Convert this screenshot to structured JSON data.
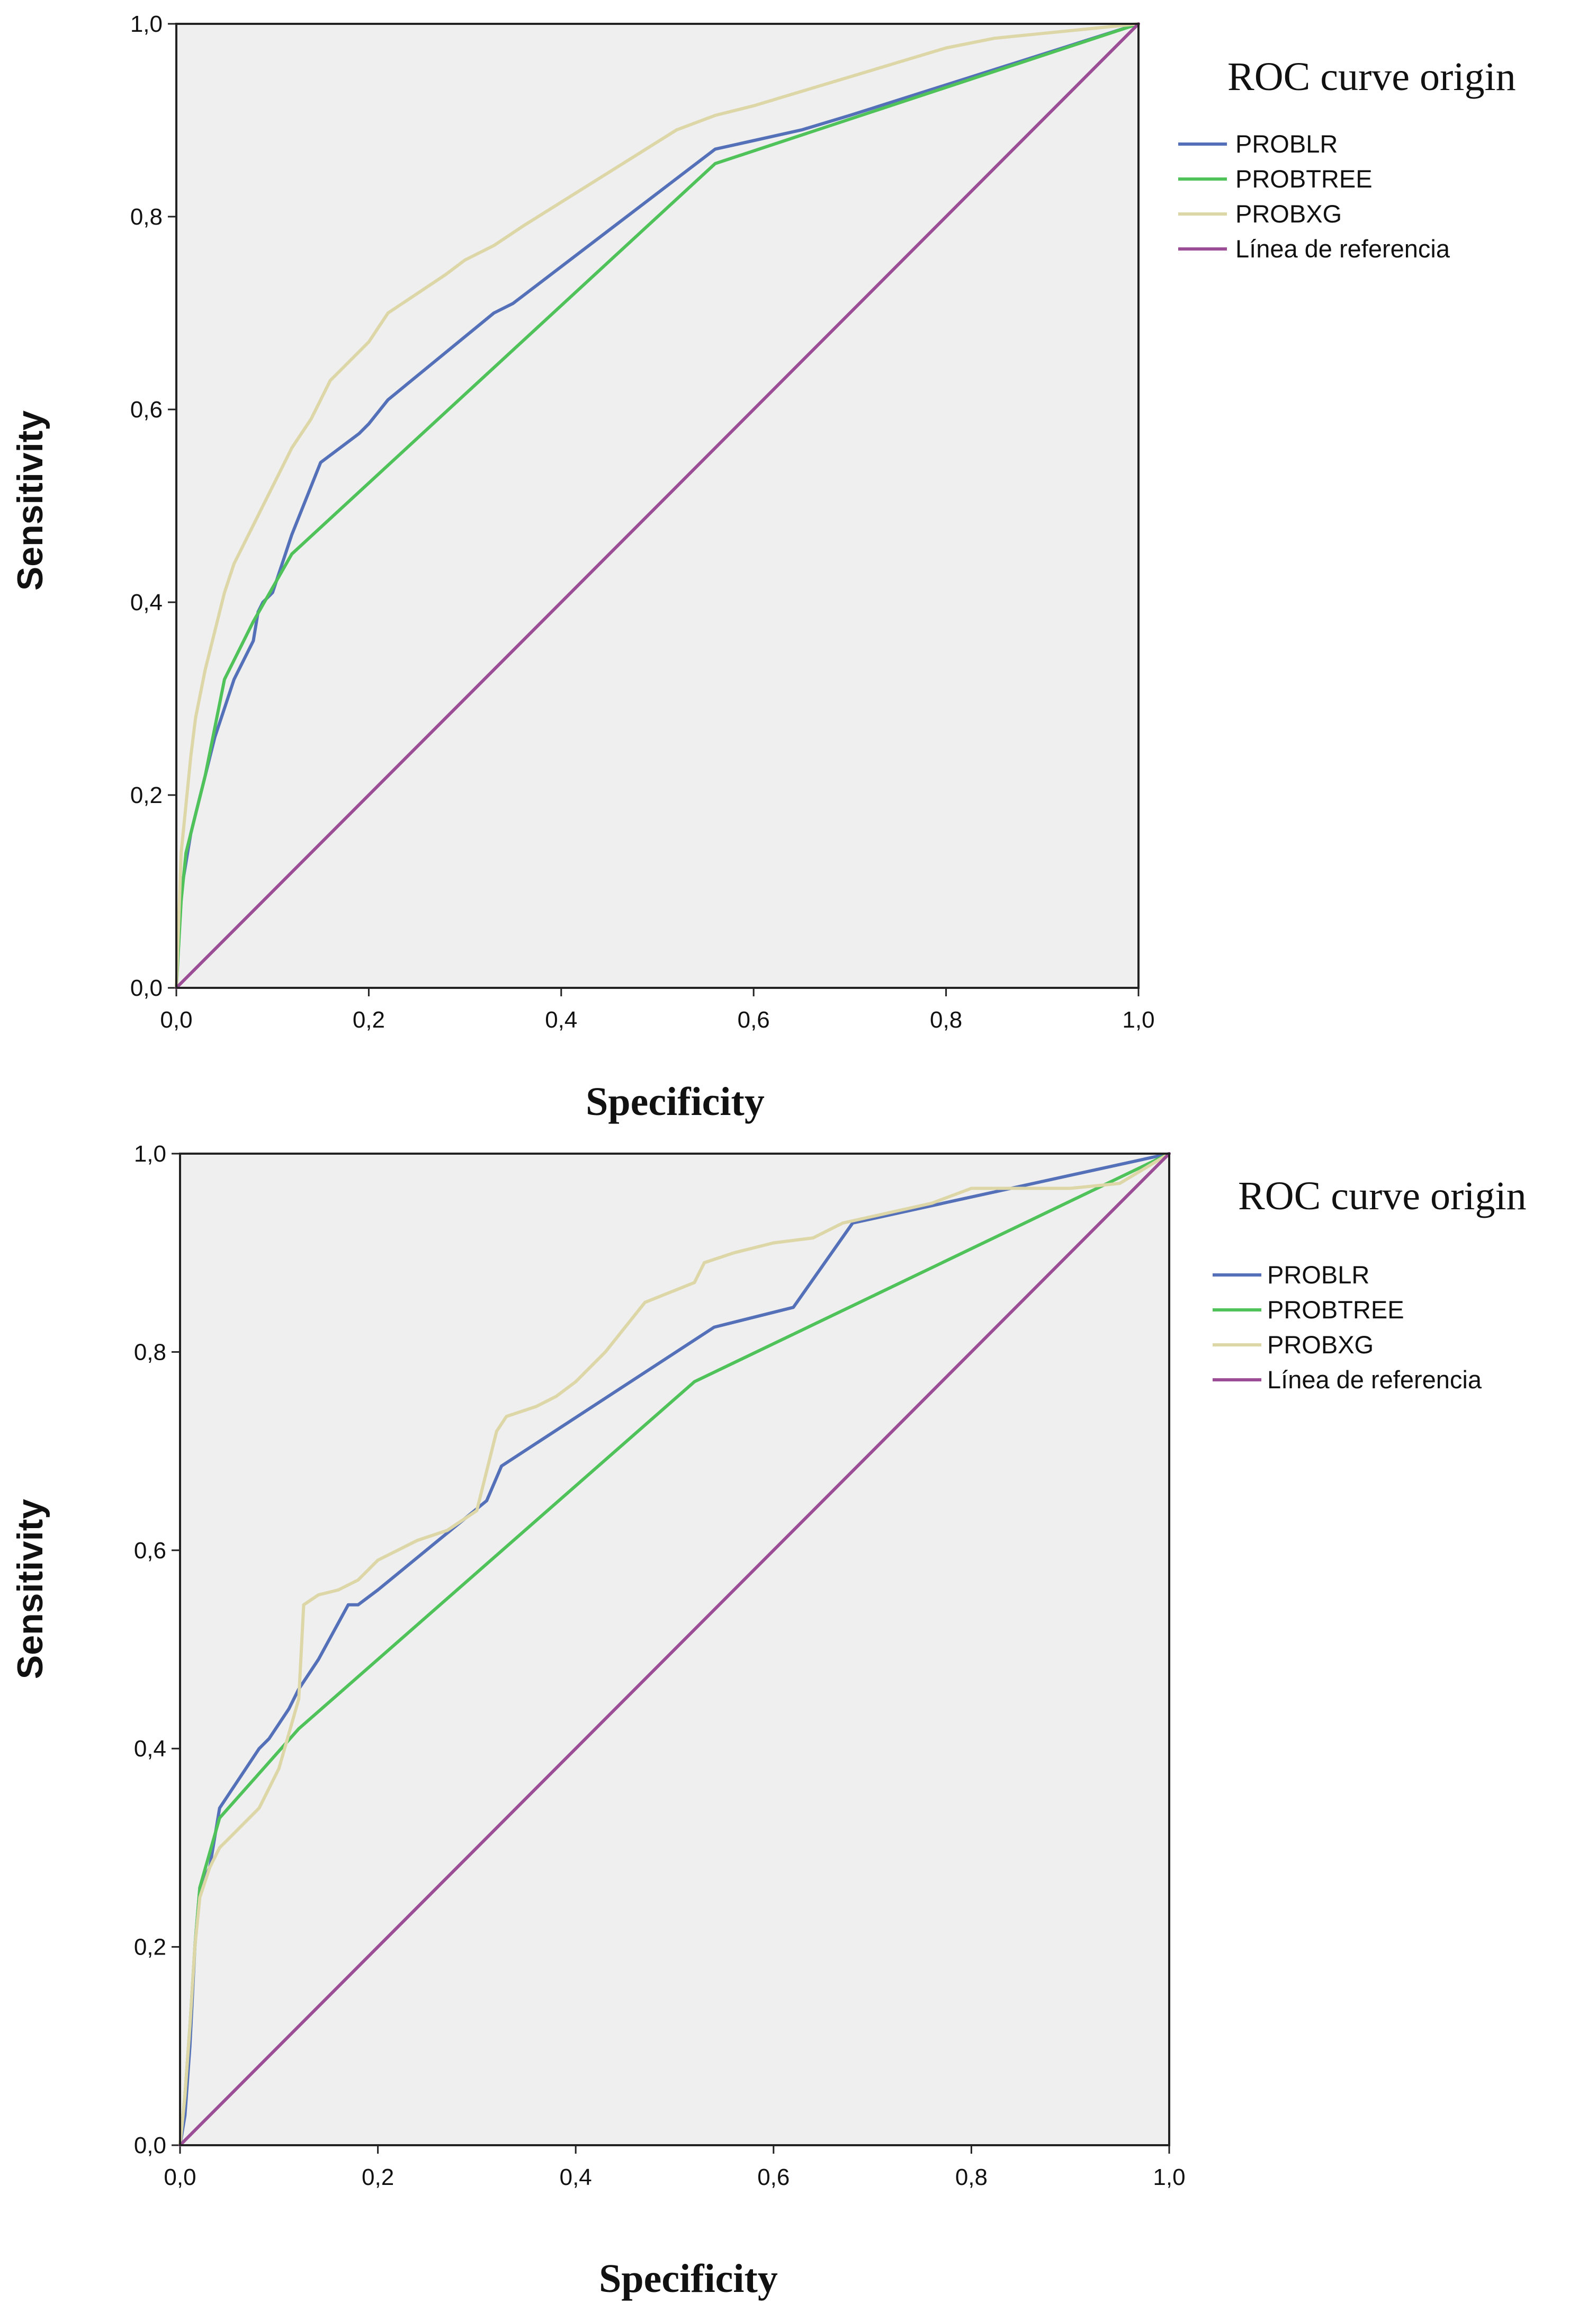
{
  "chart_data": [
    {
      "type": "line",
      "xlabel": "Specificity",
      "ylabel": "Sensitivity",
      "xlim": [
        0,
        1
      ],
      "ylim": [
        0,
        1
      ],
      "x_ticks": [
        "0,0",
        "0,2",
        "0,4",
        "0,6",
        "0,8",
        "1,0"
      ],
      "y_ticks": [
        "0,0",
        "0,2",
        "0,4",
        "0,6",
        "0,8",
        "1,0"
      ],
      "legend_title": "ROC curve origin",
      "legend_position": "right",
      "series": [
        {
          "name": "PROBLR",
          "color": "#5470b8",
          "x": [
            0,
            0.005,
            0.01,
            0.015,
            0.02,
            0.03,
            0.04,
            0.05,
            0.06,
            0.07,
            0.08,
            0.085,
            0.09,
            0.1,
            0.11,
            0.12,
            0.15,
            0.19,
            0.2,
            0.22,
            0.33,
            0.35,
            0.56,
            0.65,
            0.7,
            1.0
          ],
          "y": [
            0,
            0.1,
            0.13,
            0.16,
            0.18,
            0.22,
            0.26,
            0.29,
            0.32,
            0.34,
            0.36,
            0.39,
            0.4,
            0.41,
            0.44,
            0.47,
            0.545,
            0.575,
            0.585,
            0.61,
            0.7,
            0.71,
            0.87,
            0.89,
            0.905,
            1.0
          ]
        },
        {
          "name": "PROBTREE",
          "color": "#4fc35a",
          "x": [
            0,
            0.005,
            0.01,
            0.02,
            0.03,
            0.05,
            0.08,
            0.12,
            0.56,
            1.0
          ],
          "y": [
            0,
            0.09,
            0.14,
            0.18,
            0.22,
            0.32,
            0.38,
            0.45,
            0.855,
            1.0
          ]
        },
        {
          "name": "PROBXG",
          "color": "#ddd6a7",
          "x": [
            0,
            0.005,
            0.01,
            0.015,
            0.02,
            0.03,
            0.04,
            0.05,
            0.06,
            0.07,
            0.08,
            0.09,
            0.1,
            0.11,
            0.12,
            0.14,
            0.16,
            0.17,
            0.18,
            0.2,
            0.22,
            0.25,
            0.28,
            0.3,
            0.33,
            0.36,
            0.4,
            0.44,
            0.48,
            0.52,
            0.56,
            0.6,
            0.65,
            0.7,
            0.75,
            0.8,
            0.85,
            0.9,
            0.95,
            1.0
          ],
          "y": [
            0,
            0.14,
            0.19,
            0.24,
            0.28,
            0.33,
            0.37,
            0.41,
            0.44,
            0.46,
            0.48,
            0.5,
            0.52,
            0.54,
            0.56,
            0.59,
            0.63,
            0.64,
            0.65,
            0.67,
            0.7,
            0.72,
            0.74,
            0.755,
            0.77,
            0.79,
            0.815,
            0.84,
            0.865,
            0.89,
            0.905,
            0.915,
            0.93,
            0.945,
            0.96,
            0.975,
            0.985,
            0.99,
            0.995,
            1.0
          ]
        },
        {
          "name": "Línea de referencia",
          "color": "#9b4d96",
          "x": [
            0,
            1
          ],
          "y": [
            0,
            1
          ]
        }
      ]
    },
    {
      "type": "line",
      "xlabel": "Specificity",
      "ylabel": "Sensitivity",
      "xlim": [
        0,
        1
      ],
      "ylim": [
        0,
        1
      ],
      "x_ticks": [
        "0,0",
        "0,2",
        "0,4",
        "0,6",
        "0,8",
        "1,0"
      ],
      "y_ticks": [
        "0,0",
        "0,2",
        "0,4",
        "0,6",
        "0,8",
        "1,0"
      ],
      "legend_title": "ROC curve origin",
      "legend_position": "right",
      "series": [
        {
          "name": "PROBLR",
          "color": "#5470b8",
          "x": [
            0,
            0.005,
            0.01,
            0.015,
            0.02,
            0.03,
            0.04,
            0.08,
            0.09,
            0.11,
            0.12,
            0.14,
            0.17,
            0.18,
            0.2,
            0.31,
            0.325,
            0.54,
            0.62,
            0.68,
            1.0
          ],
          "y": [
            0,
            0.03,
            0.1,
            0.2,
            0.26,
            0.28,
            0.34,
            0.4,
            0.41,
            0.44,
            0.46,
            0.49,
            0.545,
            0.545,
            0.56,
            0.65,
            0.685,
            0.825,
            0.845,
            0.93,
            1.0
          ]
        },
        {
          "name": "PROBTREE",
          "color": "#4fc35a",
          "x": [
            0,
            0.005,
            0.01,
            0.015,
            0.02,
            0.04,
            0.12,
            0.52,
            1.0
          ],
          "y": [
            0,
            0.05,
            0.12,
            0.2,
            0.26,
            0.33,
            0.42,
            0.77,
            1.0
          ]
        },
        {
          "name": "PROBXG",
          "color": "#ddd6a7",
          "x": [
            0,
            0.005,
            0.01,
            0.015,
            0.02,
            0.03,
            0.04,
            0.05,
            0.06,
            0.07,
            0.08,
            0.09,
            0.1,
            0.12,
            0.125,
            0.14,
            0.16,
            0.18,
            0.2,
            0.22,
            0.24,
            0.27,
            0.3,
            0.31,
            0.32,
            0.33,
            0.36,
            0.38,
            0.4,
            0.43,
            0.47,
            0.52,
            0.53,
            0.56,
            0.6,
            0.64,
            0.67,
            0.76,
            0.8,
            0.9,
            0.95,
            1.0
          ],
          "y": [
            0,
            0.05,
            0.12,
            0.2,
            0.25,
            0.28,
            0.3,
            0.31,
            0.32,
            0.33,
            0.34,
            0.36,
            0.38,
            0.45,
            0.545,
            0.555,
            0.56,
            0.57,
            0.59,
            0.6,
            0.61,
            0.62,
            0.64,
            0.68,
            0.72,
            0.735,
            0.745,
            0.755,
            0.77,
            0.8,
            0.85,
            0.87,
            0.89,
            0.9,
            0.91,
            0.915,
            0.93,
            0.95,
            0.965,
            0.965,
            0.97,
            1.0
          ]
        },
        {
          "name": "Línea de referencia",
          "color": "#9b4d96",
          "x": [
            0,
            1
          ],
          "y": [
            0,
            1
          ]
        }
      ]
    }
  ]
}
